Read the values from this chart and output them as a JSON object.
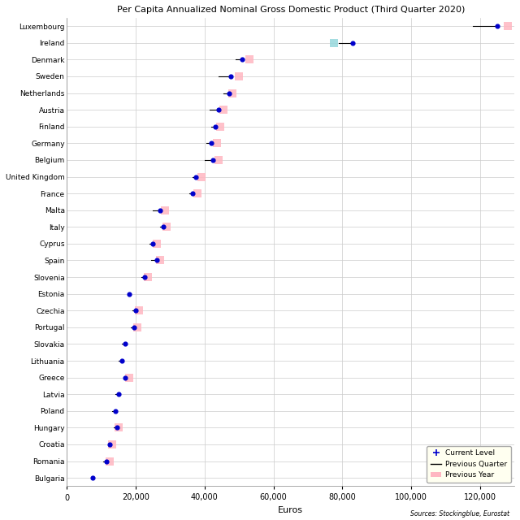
{
  "title": "Per Capita Annualized Nominal Gross Domestic Product (Third Quarter 2020)",
  "xlabel": "Euros",
  "source": "Sources: Stockingblue, Eurostat",
  "countries": [
    "Luxembourg",
    "Ireland",
    "Denmark",
    "Sweden",
    "Netherlands",
    "Austria",
    "Finland",
    "Germany",
    "Belgium",
    "United Kingdom",
    "France",
    "Malta",
    "Italy",
    "Cyprus",
    "Spain",
    "Slovenia",
    "Estonia",
    "Czechia",
    "Portugal",
    "Slovakia",
    "Lithuania",
    "Greece",
    "Latvia",
    "Poland",
    "Hungary",
    "Croatia",
    "Romania",
    "Bulgaria"
  ],
  "current": [
    125000,
    83000,
    51000,
    47500,
    47000,
    44000,
    43000,
    42000,
    42500,
    37500,
    36500,
    27000,
    28000,
    25000,
    26000,
    22500,
    18000,
    20000,
    19500,
    17000,
    16000,
    17000,
    15000,
    14000,
    14500,
    12500,
    11500,
    7500
  ],
  "prev_quarter": [
    118000,
    79000,
    49000,
    44000,
    45500,
    41500,
    42000,
    40500,
    40000,
    36500,
    35500,
    25000,
    27000,
    24000,
    24500,
    21500,
    null,
    19000,
    18500,
    16000,
    15000,
    null,
    14000,
    13000,
    13500,
    null,
    10500,
    null
  ],
  "prev_year": [
    128000,
    77500,
    53000,
    50000,
    48000,
    45500,
    44500,
    43500,
    44000,
    39000,
    38000,
    28500,
    29000,
    26000,
    27000,
    23500,
    null,
    21000,
    20500,
    null,
    null,
    18000,
    null,
    null,
    15000,
    13000,
    12500,
    null
  ],
  "current_color": "#0000CC",
  "prev_quarter_color": "#000000",
  "prev_year_color": "#FFB6C1",
  "ireland_prev_year_color": "#96D8DC",
  "background_color": "#FFFFFF",
  "grid_color": "#CCCCCC",
  "xlim": [
    0,
    130000
  ],
  "xticks": [
    0,
    20000,
    40000,
    60000,
    80000,
    100000,
    120000
  ],
  "xtick_labels": [
    "0",
    "20,000",
    "40,000",
    "60,000",
    "80,000",
    "100,000",
    "120,000"
  ]
}
